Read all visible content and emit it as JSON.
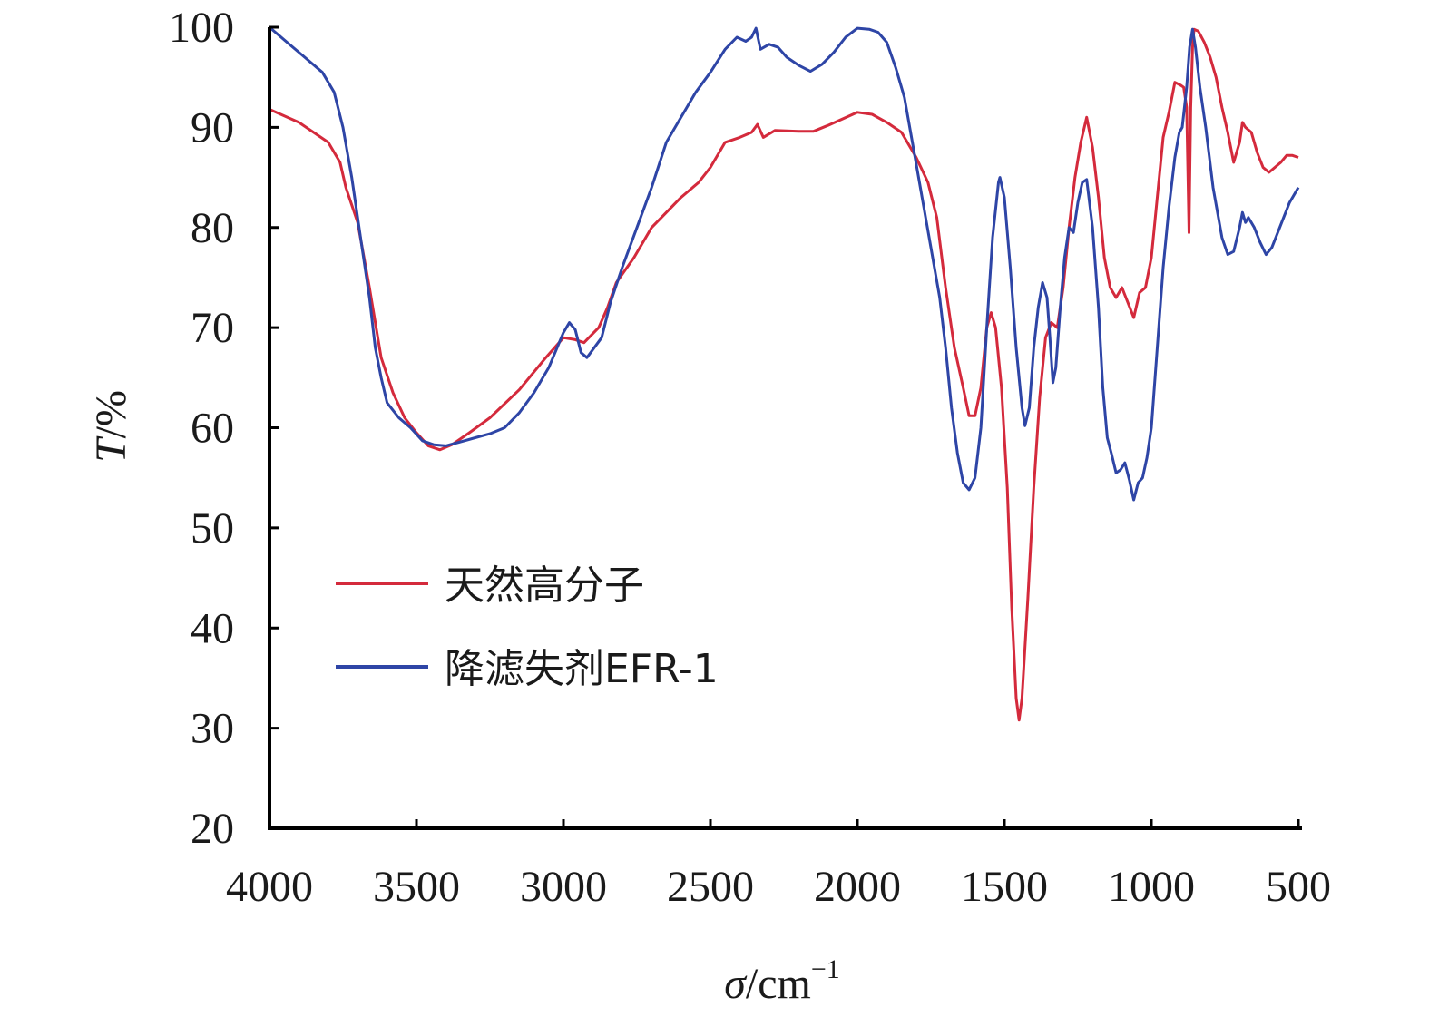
{
  "chart_data": {
    "type": "line",
    "ylabel_italic": "T",
    "ylabel_rest": "/%",
    "xlabel_italic": "σ",
    "xlabel_rest": "/cm",
    "xlabel_sup": "−1",
    "xlim": [
      4000,
      500
    ],
    "ylim": [
      20,
      100
    ],
    "xticks": [
      "4000",
      "3500",
      "3000",
      "2500",
      "2000",
      "1500",
      "1000",
      "500"
    ],
    "yticks": [
      "100",
      "90",
      "80",
      "70",
      "60",
      "50",
      "40",
      "30",
      "20"
    ],
    "grid": false,
    "legend_position": "center-left",
    "series": [
      {
        "name": "天然高分子",
        "color": "#d42a3c",
        "points": [
          [
            4000,
            91.8
          ],
          [
            3900,
            90.5
          ],
          [
            3800,
            88.5
          ],
          [
            3760,
            86.5
          ],
          [
            3740,
            84
          ],
          [
            3700,
            80.5
          ],
          [
            3660,
            74
          ],
          [
            3620,
            67
          ],
          [
            3580,
            63.5
          ],
          [
            3540,
            61
          ],
          [
            3500,
            59.5
          ],
          [
            3460,
            58.2
          ],
          [
            3420,
            57.8
          ],
          [
            3380,
            58.3
          ],
          [
            3320,
            59.5
          ],
          [
            3250,
            61
          ],
          [
            3150,
            63.8
          ],
          [
            3060,
            67
          ],
          [
            3000,
            69
          ],
          [
            2960,
            68.8
          ],
          [
            2930,
            68.5
          ],
          [
            2880,
            70
          ],
          [
            2850,
            72
          ],
          [
            2820,
            74.5
          ],
          [
            2760,
            77
          ],
          [
            2700,
            80
          ],
          [
            2600,
            83
          ],
          [
            2540,
            84.5
          ],
          [
            2500,
            86
          ],
          [
            2450,
            88.5
          ],
          [
            2400,
            89
          ],
          [
            2360,
            89.5
          ],
          [
            2340,
            90.3
          ],
          [
            2320,
            89
          ],
          [
            2280,
            89.7
          ],
          [
            2200,
            89.6
          ],
          [
            2150,
            89.6
          ],
          [
            2100,
            90.2
          ],
          [
            2000,
            91.5
          ],
          [
            1950,
            91.3
          ],
          [
            1900,
            90.5
          ],
          [
            1850,
            89.5
          ],
          [
            1800,
            87
          ],
          [
            1760,
            84.5
          ],
          [
            1730,
            81
          ],
          [
            1700,
            74
          ],
          [
            1670,
            68
          ],
          [
            1640,
            64
          ],
          [
            1620,
            61.2
          ],
          [
            1600,
            61.2
          ],
          [
            1580,
            64
          ],
          [
            1560,
            70
          ],
          [
            1545,
            71.5
          ],
          [
            1530,
            70
          ],
          [
            1510,
            64
          ],
          [
            1490,
            54
          ],
          [
            1475,
            42
          ],
          [
            1460,
            33
          ],
          [
            1450,
            30.8
          ],
          [
            1440,
            33
          ],
          [
            1420,
            43
          ],
          [
            1400,
            54
          ],
          [
            1380,
            63
          ],
          [
            1360,
            69
          ],
          [
            1340,
            70.5
          ],
          [
            1320,
            70
          ],
          [
            1300,
            74
          ],
          [
            1280,
            80
          ],
          [
            1260,
            85
          ],
          [
            1240,
            88.5
          ],
          [
            1220,
            91
          ],
          [
            1200,
            88
          ],
          [
            1180,
            83
          ],
          [
            1160,
            77
          ],
          [
            1140,
            74
          ],
          [
            1120,
            73
          ],
          [
            1100,
            74
          ],
          [
            1080,
            72.5
          ],
          [
            1060,
            71
          ],
          [
            1040,
            73.5
          ],
          [
            1020,
            74
          ],
          [
            1000,
            77
          ],
          [
            980,
            83
          ],
          [
            960,
            89
          ],
          [
            940,
            91.5
          ],
          [
            920,
            94.5
          ],
          [
            900,
            94.2
          ],
          [
            890,
            94
          ],
          [
            880,
            92
          ],
          [
            872,
            79.5
          ],
          [
            866,
            92
          ],
          [
            860,
            98
          ],
          [
            855,
            99.8
          ],
          [
            840,
            99.6
          ],
          [
            820,
            98.5
          ],
          [
            800,
            97
          ],
          [
            780,
            95
          ],
          [
            760,
            92
          ],
          [
            740,
            89.5
          ],
          [
            720,
            86.5
          ],
          [
            700,
            88.5
          ],
          [
            690,
            90.5
          ],
          [
            680,
            90
          ],
          [
            660,
            89.5
          ],
          [
            640,
            87.5
          ],
          [
            620,
            86
          ],
          [
            600,
            85.5
          ],
          [
            580,
            86
          ],
          [
            560,
            86.5
          ],
          [
            540,
            87.2
          ],
          [
            520,
            87.2
          ],
          [
            500,
            87
          ]
        ]
      },
      {
        "name": "降滤失剂EFR-1",
        "color": "#2e45a6",
        "points": [
          [
            4000,
            100
          ],
          [
            3940,
            98.5
          ],
          [
            3880,
            97
          ],
          [
            3820,
            95.5
          ],
          [
            3780,
            93.5
          ],
          [
            3750,
            90
          ],
          [
            3720,
            85
          ],
          [
            3690,
            79
          ],
          [
            3660,
            73
          ],
          [
            3640,
            68
          ],
          [
            3620,
            65
          ],
          [
            3600,
            62.5
          ],
          [
            3560,
            61
          ],
          [
            3520,
            60
          ],
          [
            3480,
            58.7
          ],
          [
            3440,
            58.3
          ],
          [
            3400,
            58.2
          ],
          [
            3350,
            58.6
          ],
          [
            3300,
            59
          ],
          [
            3250,
            59.4
          ],
          [
            3200,
            60
          ],
          [
            3150,
            61.5
          ],
          [
            3100,
            63.5
          ],
          [
            3050,
            66
          ],
          [
            3000,
            69.5
          ],
          [
            2980,
            70.5
          ],
          [
            2960,
            69.8
          ],
          [
            2940,
            67.5
          ],
          [
            2920,
            67
          ],
          [
            2900,
            67.8
          ],
          [
            2870,
            69
          ],
          [
            2840,
            72.5
          ],
          [
            2800,
            76
          ],
          [
            2750,
            80
          ],
          [
            2700,
            84
          ],
          [
            2650,
            88.5
          ],
          [
            2600,
            91
          ],
          [
            2550,
            93.5
          ],
          [
            2500,
            95.5
          ],
          [
            2450,
            97.8
          ],
          [
            2410,
            99
          ],
          [
            2380,
            98.6
          ],
          [
            2360,
            99
          ],
          [
            2345,
            99.9
          ],
          [
            2330,
            97.8
          ],
          [
            2300,
            98.3
          ],
          [
            2270,
            98
          ],
          [
            2240,
            97
          ],
          [
            2200,
            96.2
          ],
          [
            2160,
            95.6
          ],
          [
            2120,
            96.3
          ],
          [
            2080,
            97.5
          ],
          [
            2040,
            99
          ],
          [
            2000,
            99.9
          ],
          [
            1960,
            99.8
          ],
          [
            1930,
            99.5
          ],
          [
            1900,
            98.5
          ],
          [
            1870,
            96
          ],
          [
            1840,
            93
          ],
          [
            1810,
            88
          ],
          [
            1780,
            83
          ],
          [
            1750,
            78
          ],
          [
            1720,
            73
          ],
          [
            1700,
            68
          ],
          [
            1680,
            62
          ],
          [
            1660,
            57.5
          ],
          [
            1640,
            54.5
          ],
          [
            1620,
            53.8
          ],
          [
            1600,
            55
          ],
          [
            1580,
            60
          ],
          [
            1560,
            70
          ],
          [
            1540,
            79
          ],
          [
            1520,
            84.5
          ],
          [
            1515,
            85
          ],
          [
            1500,
            83
          ],
          [
            1480,
            76
          ],
          [
            1460,
            68
          ],
          [
            1440,
            62
          ],
          [
            1430,
            60.2
          ],
          [
            1415,
            62
          ],
          [
            1400,
            68
          ],
          [
            1385,
            72
          ],
          [
            1370,
            74.5
          ],
          [
            1355,
            73
          ],
          [
            1345,
            69
          ],
          [
            1335,
            64.5
          ],
          [
            1325,
            66
          ],
          [
            1310,
            72
          ],
          [
            1295,
            77
          ],
          [
            1280,
            80
          ],
          [
            1265,
            79.5
          ],
          [
            1250,
            82.5
          ],
          [
            1235,
            84.5
          ],
          [
            1220,
            84.8
          ],
          [
            1200,
            80
          ],
          [
            1180,
            72
          ],
          [
            1165,
            64
          ],
          [
            1150,
            59
          ],
          [
            1135,
            57.3
          ],
          [
            1120,
            55.5
          ],
          [
            1105,
            55.8
          ],
          [
            1090,
            56.5
          ],
          [
            1075,
            54.8
          ],
          [
            1060,
            52.8
          ],
          [
            1045,
            54.5
          ],
          [
            1030,
            55
          ],
          [
            1015,
            57
          ],
          [
            1000,
            60
          ],
          [
            980,
            68
          ],
          [
            960,
            76
          ],
          [
            940,
            82
          ],
          [
            920,
            87
          ],
          [
            905,
            89.5
          ],
          [
            895,
            90
          ],
          [
            880,
            94
          ],
          [
            870,
            98
          ],
          [
            860,
            99.8
          ],
          [
            850,
            98
          ],
          [
            835,
            94
          ],
          [
            815,
            90
          ],
          [
            790,
            84
          ],
          [
            760,
            79
          ],
          [
            740,
            77.3
          ],
          [
            720,
            77.6
          ],
          [
            700,
            80
          ],
          [
            690,
            81.5
          ],
          [
            680,
            80.5
          ],
          [
            670,
            81
          ],
          [
            650,
            80
          ],
          [
            630,
            78.5
          ],
          [
            610,
            77.3
          ],
          [
            590,
            78
          ],
          [
            570,
            79.5
          ],
          [
            550,
            81
          ],
          [
            530,
            82.5
          ],
          [
            510,
            83.5
          ],
          [
            500,
            84
          ]
        ]
      }
    ]
  }
}
